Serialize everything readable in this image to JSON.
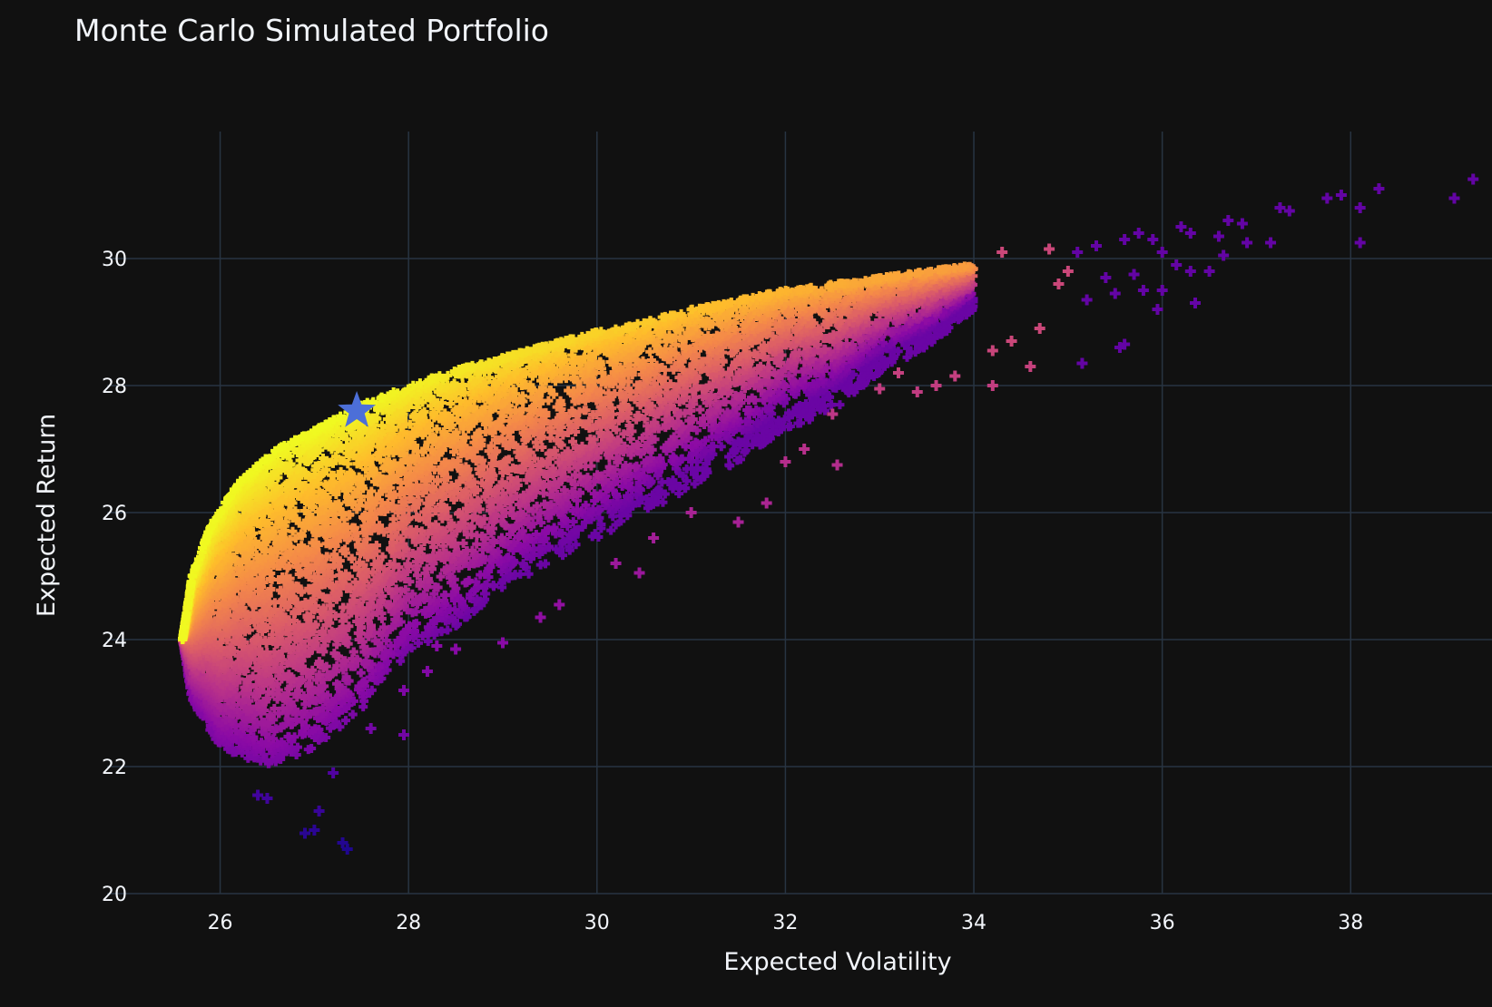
{
  "chart_data": {
    "type": "scatter",
    "title": "Monte Carlo Simulated Portfolio",
    "xlabel": "Expected Volatility",
    "ylabel": "Expected Return",
    "xlim": [
      24.8,
      39.5
    ],
    "ylim": [
      20,
      32
    ],
    "x_ticks": [
      26,
      28,
      30,
      32,
      34,
      36,
      38
    ],
    "y_ticks": [
      20,
      22,
      24,
      26,
      28,
      30
    ],
    "grid": true,
    "legend": "none",
    "marker": "cross",
    "colorscale": "plasma",
    "background": "#111111",
    "cloud": {
      "frontier": [
        [
          25.6,
          24.0
        ],
        [
          25.7,
          25.0
        ],
        [
          25.9,
          25.8
        ],
        [
          26.2,
          26.5
        ],
        [
          26.6,
          27.0
        ],
        [
          27.0,
          27.3
        ],
        [
          27.5,
          27.7
        ],
        [
          28.0,
          28.0
        ],
        [
          28.5,
          28.25
        ],
        [
          29.0,
          28.45
        ],
        [
          29.5,
          28.65
        ],
        [
          30.0,
          28.85
        ],
        [
          30.5,
          29.0
        ],
        [
          31.0,
          29.2
        ],
        [
          31.5,
          29.35
        ],
        [
          32.0,
          29.5
        ],
        [
          32.5,
          29.6
        ],
        [
          33.0,
          29.7
        ],
        [
          33.5,
          29.8
        ],
        [
          34.0,
          29.9
        ]
      ],
      "lower_boundary": [
        [
          25.6,
          24.0
        ],
        [
          25.7,
          23.0
        ],
        [
          26.0,
          22.3
        ],
        [
          26.5,
          22.0
        ],
        [
          27.0,
          22.3
        ],
        [
          27.5,
          22.9
        ],
        [
          28.0,
          23.8
        ],
        [
          28.5,
          24.2
        ],
        [
          29.0,
          24.8
        ],
        [
          29.5,
          25.2
        ],
        [
          30.0,
          25.6
        ],
        [
          30.5,
          26.0
        ],
        [
          31.0,
          26.4
        ],
        [
          31.5,
          26.8
        ],
        [
          32.0,
          27.3
        ],
        [
          32.5,
          27.6
        ],
        [
          33.0,
          28.2
        ],
        [
          33.5,
          28.6
        ],
        [
          34.0,
          29.2
        ]
      ],
      "count": 9000
    },
    "outliers": [
      [
        27.3,
        20.8
      ],
      [
        27.35,
        20.7
      ],
      [
        26.9,
        20.95
      ],
      [
        27.05,
        21.3
      ],
      [
        27.0,
        21.0
      ],
      [
        26.4,
        21.55
      ],
      [
        26.5,
        21.5
      ],
      [
        27.2,
        21.9
      ],
      [
        27.6,
        22.6
      ],
      [
        27.95,
        22.5
      ],
      [
        27.95,
        23.2
      ],
      [
        28.2,
        23.5
      ],
      [
        28.3,
        23.9
      ],
      [
        28.5,
        23.85
      ],
      [
        29.0,
        23.95
      ],
      [
        29.4,
        24.35
      ],
      [
        29.6,
        24.55
      ],
      [
        30.2,
        25.2
      ],
      [
        30.45,
        25.05
      ],
      [
        30.6,
        25.6
      ],
      [
        31.0,
        26.0
      ],
      [
        31.5,
        25.85
      ],
      [
        31.8,
        26.15
      ],
      [
        32.0,
        26.8
      ],
      [
        32.2,
        27.0
      ],
      [
        32.55,
        26.75
      ],
      [
        32.5,
        27.55
      ],
      [
        33.0,
        27.95
      ],
      [
        33.2,
        28.2
      ],
      [
        33.4,
        27.9
      ],
      [
        33.6,
        28.0
      ],
      [
        33.8,
        28.15
      ],
      [
        34.2,
        28.0
      ],
      [
        34.2,
        28.55
      ],
      [
        34.4,
        28.7
      ],
      [
        34.6,
        28.3
      ],
      [
        34.7,
        28.9
      ],
      [
        34.9,
        29.6
      ],
      [
        35.0,
        29.8
      ],
      [
        35.2,
        29.35
      ],
      [
        35.15,
        28.35
      ],
      [
        35.4,
        29.7
      ],
      [
        35.5,
        29.45
      ],
      [
        35.6,
        28.65
      ],
      [
        35.55,
        28.6
      ],
      [
        35.7,
        29.75
      ],
      [
        35.8,
        29.5
      ],
      [
        35.95,
        29.2
      ],
      [
        36.0,
        29.5
      ],
      [
        36.0,
        30.1
      ],
      [
        36.15,
        29.9
      ],
      [
        36.2,
        30.5
      ],
      [
        36.3,
        30.4
      ],
      [
        36.3,
        29.8
      ],
      [
        36.35,
        29.3
      ],
      [
        36.5,
        29.8
      ],
      [
        36.6,
        30.35
      ],
      [
        36.65,
        30.05
      ],
      [
        36.7,
        30.6
      ],
      [
        36.85,
        30.55
      ],
      [
        36.9,
        30.25
      ],
      [
        37.15,
        30.25
      ],
      [
        37.25,
        30.8
      ],
      [
        37.35,
        30.75
      ],
      [
        37.75,
        30.95
      ],
      [
        37.9,
        31.0
      ],
      [
        38.1,
        30.8
      ],
      [
        38.1,
        30.25
      ],
      [
        38.3,
        31.1
      ],
      [
        39.1,
        30.95
      ],
      [
        39.3,
        31.25
      ],
      [
        35.3,
        30.2
      ],
      [
        35.1,
        30.1
      ],
      [
        34.8,
        30.15
      ],
      [
        34.3,
        30.1
      ],
      [
        35.75,
        30.4
      ],
      [
        35.9,
        30.3
      ],
      [
        35.6,
        30.3
      ]
    ],
    "optimal_point": {
      "x": 27.45,
      "y": 27.6,
      "marker": "star",
      "color": "#4c6fd8"
    }
  }
}
